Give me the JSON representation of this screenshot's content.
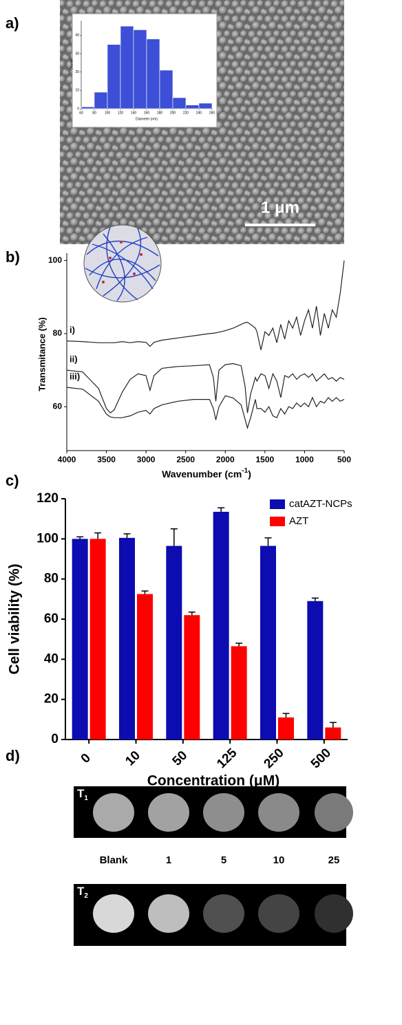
{
  "panel_labels": [
    "a)",
    "b)",
    "c)",
    "d)"
  ],
  "sem": {
    "scale_bar": "1 μm"
  },
  "chart_data": [
    {
      "type": "histogram",
      "x_label": "Diameter (nm)",
      "y_label": "Counts",
      "bins": [
        60,
        80,
        100,
        120,
        140,
        160,
        180,
        200,
        220,
        240,
        260
      ],
      "values": [
        1,
        9,
        35,
        45,
        43,
        38,
        21,
        6,
        2,
        3
      ],
      "color": "#3d4fd6",
      "xlim": [
        60,
        260
      ],
      "xticks": [
        60,
        80,
        100,
        120,
        140,
        160,
        180,
        200,
        220,
        240,
        260
      ],
      "ylim": [
        0,
        48
      ],
      "yticks": [
        0,
        10,
        20,
        30,
        40
      ]
    },
    {
      "type": "line",
      "x_label": [
        "Wavenumber (cm",
        "-1",
        ")"
      ],
      "y_label": "Transmitance (%)",
      "x": [
        4000,
        3800,
        3600,
        3500,
        3450,
        3400,
        3300,
        3200,
        3100,
        3000,
        2950,
        2900,
        2800,
        2600,
        2400,
        2200,
        2150,
        2120,
        2080,
        2000,
        1900,
        1800,
        1750,
        1720,
        1680,
        1620,
        1600,
        1550,
        1500,
        1450,
        1400,
        1350,
        1300,
        1250,
        1200,
        1150,
        1100,
        1050,
        1000,
        950,
        900,
        850,
        800,
        750,
        700,
        650,
        600,
        550,
        500
      ],
      "series": [
        {
          "name": "i)",
          "color": "#222222",
          "values": [
            78,
            77.8,
            77.5,
            77.5,
            77.5,
            77.5,
            77.8,
            77.5,
            77.8,
            77.6,
            76.5,
            77.6,
            78.2,
            78.8,
            79.4,
            80,
            80.1,
            80.2,
            80.4,
            80.8,
            81.5,
            82.5,
            83,
            83.1,
            82.5,
            81.5,
            80.5,
            75.5,
            80.5,
            79.5,
            81.5,
            77.5,
            82.5,
            78.5,
            83.5,
            81.5,
            84.5,
            79.5,
            83.5,
            86.5,
            81.5,
            87.5,
            79.5,
            85.5,
            81.5,
            86.5,
            84.5,
            91,
            100
          ]
        },
        {
          "name": "ii)",
          "color": "#222222",
          "values": [
            70,
            69.5,
            65,
            59.5,
            58.3,
            59.2,
            64,
            67.5,
            69,
            68.5,
            64.5,
            68.5,
            70.5,
            71,
            71.2,
            71.5,
            68,
            61.5,
            70,
            71.5,
            71.8,
            71.2,
            65.5,
            58.3,
            63.5,
            68,
            67,
            69,
            68.5,
            65,
            69,
            67,
            62.5,
            68.5,
            68,
            69,
            67.5,
            68.5,
            69,
            68,
            69,
            67,
            68,
            69,
            67.5,
            68,
            67,
            68,
            67.5
          ]
        },
        {
          "name": "iii)",
          "color": "#222222",
          "values": [
            65.3,
            64.8,
            61.5,
            58,
            57.2,
            57,
            57,
            57.5,
            58.5,
            59,
            58,
            59.5,
            60.5,
            61.5,
            62,
            62,
            59.5,
            56.4,
            60,
            63,
            62.4,
            60.5,
            56.5,
            54.2,
            57,
            62,
            59.5,
            59.5,
            58.5,
            60,
            57.5,
            57,
            59.5,
            58,
            60,
            59.5,
            61,
            60,
            61,
            60,
            62.5,
            60,
            61.5,
            61,
            62.5,
            61.5,
            62.5,
            61.5,
            62
          ]
        }
      ],
      "xlim": [
        4000,
        500
      ],
      "xticks": [
        4000,
        3500,
        3000,
        2500,
        2000,
        1500,
        1000,
        500
      ],
      "ylim": [
        48,
        102
      ],
      "yticks": [
        60,
        80,
        100
      ]
    },
    {
      "type": "bar",
      "x_label": "Concentration (μM)",
      "y_label": "Cell viability (%)",
      "categories": [
        "0",
        "10",
        "50",
        "125",
        "250",
        "500"
      ],
      "series": [
        {
          "name": "catAZT-NCPs",
          "color": "#0c0cb0",
          "values": [
            100,
            100.5,
            96.5,
            113.5,
            96.5,
            69
          ],
          "errors": [
            1,
            2,
            8.5,
            2,
            4,
            1.5
          ]
        },
        {
          "name": "AZT",
          "color": "#ff0000",
          "values": [
            100,
            72.5,
            62,
            46.5,
            11,
            6
          ],
          "errors": [
            3,
            1.5,
            1.5,
            1.5,
            2,
            2.5
          ]
        }
      ],
      "ylim": [
        0,
        120
      ],
      "yticks": [
        0,
        20,
        40,
        60,
        80,
        100,
        120
      ],
      "legend": "top-right"
    }
  ],
  "mri": {
    "rows": [
      {
        "label": "T",
        "subscript": "1"
      },
      {
        "label": "T",
        "subscript": "2"
      }
    ],
    "concentrations": [
      "Blank",
      "1",
      "5",
      "10",
      "25"
    ]
  }
}
